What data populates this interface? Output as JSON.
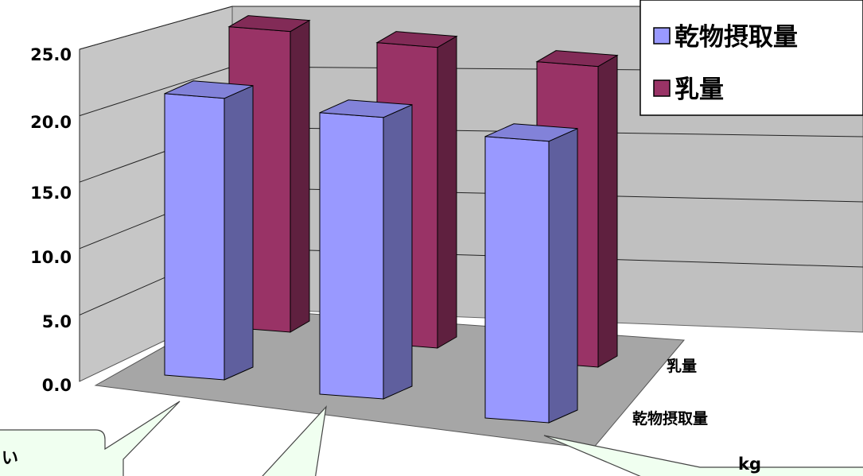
{
  "chart_data": {
    "type": "bar",
    "title": "",
    "xlabel": "",
    "ylabel": "",
    "ylim": [
      0,
      25
    ],
    "yticks": [
      "0.0",
      "5.0",
      "10.0",
      "15.0",
      "20.0",
      "25.0"
    ],
    "depth_categories": [
      "乾物摂取量",
      "乳量"
    ],
    "groups": 3,
    "series": [
      {
        "name": "乾物摂取量",
        "values": [
          22.0,
          22.0,
          22.0
        ],
        "color": "#9999ff"
      },
      {
        "name": "乳量",
        "values": [
          23.5,
          23.5,
          23.5
        ],
        "color": "#993366"
      }
    ],
    "grid": true,
    "legend_position": "top-right",
    "projection": "3d-column"
  },
  "callouts": {
    "left_text": "い",
    "right_text": "kg"
  },
  "colors": {
    "wall": "#c0c0c0",
    "floor": "#a6a6a6",
    "callout_fill": "#f0fff0"
  }
}
